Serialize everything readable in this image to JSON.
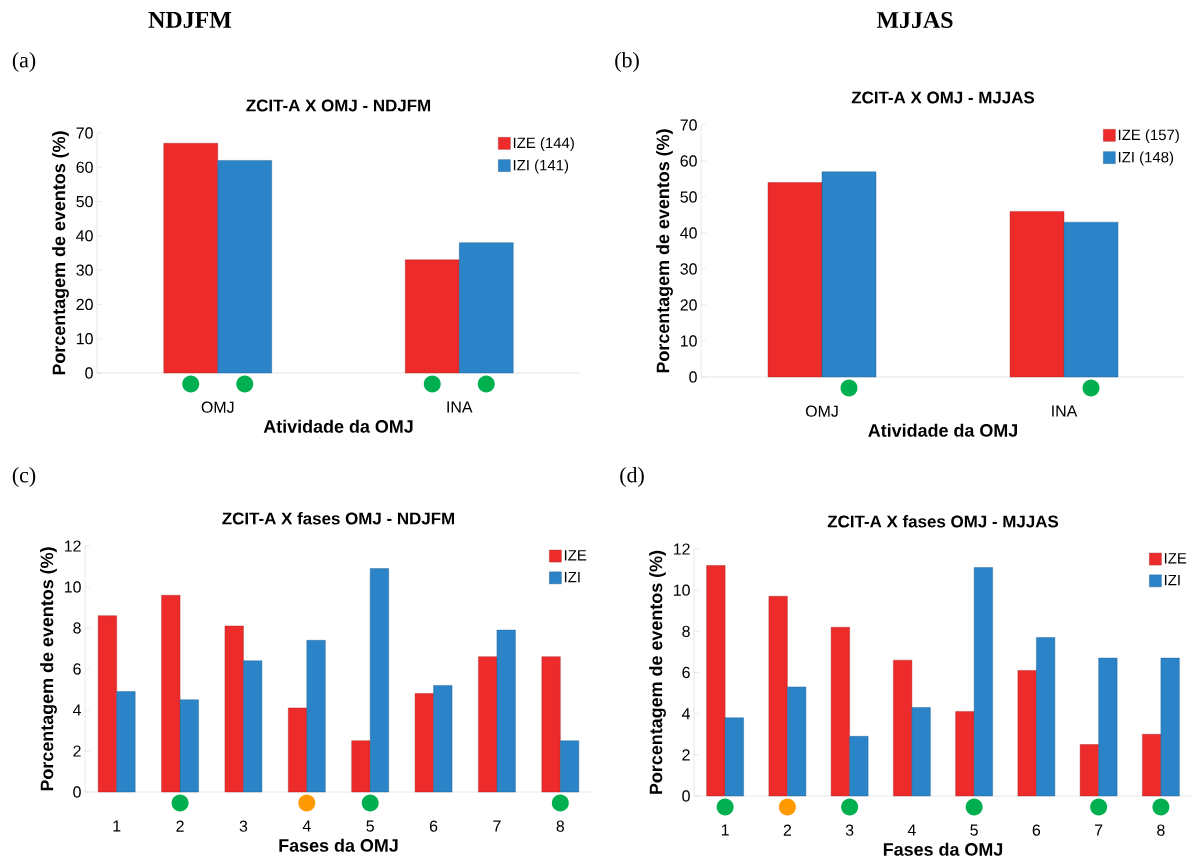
{
  "chart_data": [
    {
      "type": "bar",
      "title": "ZCIT-A X OMJ - NDJFM",
      "xlabel": "Atividade da OMJ",
      "ylabel": "Porcentagem de eventos (%)",
      "categories": [
        "OMJ",
        "INA"
      ],
      "series": [
        {
          "name": "IZE (144)",
          "color": "#ee2b2b",
          "values": [
            67,
            33
          ]
        },
        {
          "name": "IZI (141)",
          "color": "#2b84c8",
          "values": [
            62,
            38
          ]
        }
      ],
      "ylim": [
        0,
        70
      ],
      "yticks": [
        0,
        10,
        20,
        30,
        40,
        50,
        60,
        70
      ],
      "legend": "top right",
      "annotations": [
        "NDJFM",
        "(a)"
      ]
    },
    {
      "type": "bar",
      "title": "ZCIT-A X OMJ - MJJAS",
      "xlabel": "Atividade da OMJ",
      "ylabel": "Porcentagem de eventos (%)",
      "categories": [
        "OMJ",
        "INA"
      ],
      "series": [
        {
          "name": "IZE (157)",
          "color": "#ee2b2b",
          "values": [
            54,
            46
          ]
        },
        {
          "name": "IZI (148)",
          "color": "#2b84c8",
          "values": [
            57,
            43
          ]
        }
      ],
      "ylim": [
        0,
        70
      ],
      "yticks": [
        0,
        10,
        20,
        30,
        40,
        50,
        60,
        70
      ],
      "legend": "top right",
      "annotations": [
        "MJJAS",
        "(b)"
      ]
    },
    {
      "type": "bar",
      "title": "ZCIT-A X fases OMJ - NDJFM",
      "xlabel": "Fases da OMJ",
      "ylabel": "Porcentagem de eventos (%)",
      "categories": [
        "1",
        "2",
        "3",
        "4",
        "5",
        "6",
        "7",
        "8"
      ],
      "series": [
        {
          "name": "IZE",
          "color": "#ee2b2b",
          "values": [
            8.6,
            9.6,
            8.1,
            4.1,
            2.5,
            4.8,
            6.6,
            6.6
          ]
        },
        {
          "name": "IZI",
          "color": "#2b84c8",
          "values": [
            4.9,
            4.5,
            6.4,
            7.4,
            10.9,
            5.2,
            7.9,
            2.5
          ]
        }
      ],
      "ylim": [
        0,
        12
      ],
      "yticks": [
        0,
        2,
        4,
        6,
        8,
        10,
        12
      ],
      "legend": "top right",
      "annotations": [
        "(c)"
      ]
    },
    {
      "type": "bar",
      "title": "ZCIT-A X fases OMJ - MJJAS",
      "xlabel": "Fases da OMJ",
      "ylabel": "Porcentagem de eventos (%)",
      "categories": [
        "1",
        "2",
        "3",
        "4",
        "5",
        "6",
        "7",
        "8"
      ],
      "series": [
        {
          "name": "IZE",
          "color": "#ee2b2b",
          "values": [
            11.2,
            9.7,
            8.2,
            6.6,
            4.1,
            6.1,
            2.5,
            3.0
          ]
        },
        {
          "name": "IZI",
          "color": "#2b84c8",
          "values": [
            3.8,
            5.3,
            2.9,
            4.3,
            11.1,
            7.7,
            6.7,
            6.7
          ]
        }
      ],
      "ylim": [
        0,
        12
      ],
      "yticks": [
        0,
        2,
        4,
        6,
        8,
        10,
        12
      ],
      "legend": "top right",
      "annotations": [
        "(d)"
      ]
    }
  ]
}
